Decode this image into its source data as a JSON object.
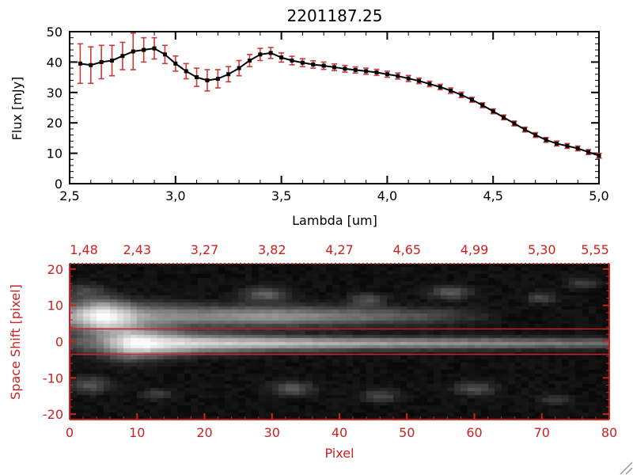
{
  "window": {
    "background": "#ffffff"
  },
  "colors": {
    "axis_black": "#000000",
    "plot_red": "#cc2222",
    "error_red": "#cc3939",
    "background": "#ffffff",
    "image_background": "#000000"
  },
  "chart_data": [
    {
      "type": "line",
      "title": "2201187.25",
      "xlabel": "Lambda [um]",
      "ylabel": "Flux [mJy]",
      "xlim": [
        2.5,
        5.0
      ],
      "ylim": [
        0,
        50
      ],
      "x_ticks": [
        2.5,
        3.0,
        3.5,
        4.0,
        4.5,
        5.0
      ],
      "x_tick_labels": [
        "2,5",
        "3,0",
        "3,5",
        "4,0",
        "4,5",
        "5,0"
      ],
      "x_minor_step": 0.1,
      "y_ticks": [
        0,
        10,
        20,
        30,
        40,
        50
      ],
      "y_tick_labels": [
        "0",
        "10",
        "20",
        "30",
        "40",
        "50"
      ],
      "y_minor_step": 2,
      "marker": "filled-square",
      "has_error_bars": true,
      "line_color": "#000000",
      "error_color": "#cc3939",
      "x": [
        2.55,
        2.6,
        2.65,
        2.7,
        2.75,
        2.8,
        2.85,
        2.9,
        2.95,
        3.0,
        3.05,
        3.1,
        3.15,
        3.2,
        3.25,
        3.3,
        3.35,
        3.4,
        3.45,
        3.5,
        3.55,
        3.6,
        3.65,
        3.7,
        3.75,
        3.8,
        3.85,
        3.9,
        3.95,
        4.0,
        4.05,
        4.1,
        4.15,
        4.2,
        4.25,
        4.3,
        4.35,
        4.4,
        4.45,
        4.5,
        4.55,
        4.6,
        4.65,
        4.7,
        4.75,
        4.8,
        4.85,
        4.9,
        4.95,
        5.0
      ],
      "y": [
        39.5,
        39.0,
        40.0,
        40.5,
        42.0,
        43.5,
        44.0,
        44.5,
        42.5,
        39.5,
        37.0,
        35.0,
        34.0,
        34.5,
        36.0,
        38.0,
        40.5,
        42.5,
        43.0,
        41.5,
        40.5,
        39.8,
        39.2,
        38.8,
        38.3,
        37.8,
        37.4,
        37.0,
        36.6,
        36.0,
        35.4,
        34.6,
        33.8,
        32.8,
        31.8,
        30.6,
        29.2,
        27.6,
        25.8,
        23.8,
        21.8,
        19.8,
        17.8,
        16.0,
        14.4,
        13.2,
        12.4,
        11.6,
        10.4,
        9.2
      ],
      "yerr": [
        6.5,
        6.0,
        5.5,
        5.0,
        4.5,
        6.0,
        4.0,
        3.5,
        3.0,
        2.5,
        2.5,
        3.0,
        3.5,
        3.0,
        2.5,
        2.5,
        2.0,
        2.0,
        1.8,
        1.5,
        1.4,
        1.3,
        1.2,
        1.2,
        1.1,
        1.1,
        1.0,
        1.0,
        1.0,
        1.0,
        1.0,
        1.0,
        0.9,
        0.9,
        0.9,
        0.9,
        0.9,
        0.8,
        0.8,
        0.8,
        0.8,
        0.8,
        0.8,
        0.8,
        0.8,
        0.8,
        0.8,
        0.8,
        0.8,
        0.8
      ]
    },
    {
      "type": "heatmap",
      "xlabel": "Pixel",
      "ylabel": "Space Shift [pixel]",
      "axis_color": "#cc2222",
      "colormap": "grayscale",
      "xlim": [
        0,
        80
      ],
      "ylim": [
        -21.5,
        21.5
      ],
      "x_ticks": [
        0,
        10,
        20,
        30,
        40,
        50,
        60,
        70,
        80
      ],
      "x_tick_labels": [
        "0",
        "10",
        "20",
        "30",
        "40",
        "50",
        "60",
        "70",
        "80"
      ],
      "x_minor_step": 2,
      "y_ticks": [
        -20,
        -10,
        0,
        10,
        20
      ],
      "y_tick_labels": [
        "-20",
        "-10",
        "0",
        "10",
        "20"
      ],
      "y_minor_step": 2,
      "top_axis_labels": [
        "1,48",
        "2,43",
        "3,27",
        "3,82",
        "4,27",
        "4,65",
        "4,99",
        "5,30",
        "5,55"
      ],
      "aperture_lines_y": [
        3.5,
        -3.5
      ],
      "image": {
        "grid": {
          "nx": 80,
          "ny": 44,
          "y_min": -21.5,
          "y_max": 21.5
        },
        "traces": [
          {
            "name": "upper-trace",
            "y_center": 7,
            "amp_points": [
              [
                0,
                0.55
              ],
              [
                3,
                0.85
              ],
              [
                5,
                1.0
              ],
              [
                8,
                0.8
              ],
              [
                11,
                0.55
              ],
              [
                15,
                0.48
              ],
              [
                20,
                0.45
              ],
              [
                26,
                0.5
              ],
              [
                30,
                0.52
              ],
              [
                36,
                0.45
              ],
              [
                42,
                0.38
              ],
              [
                48,
                0.3
              ],
              [
                54,
                0.22
              ],
              [
                58,
                0.14
              ],
              [
                62,
                0.06
              ],
              [
                64,
                0.0
              ],
              [
                80,
                0.0
              ]
            ],
            "sigma_points": [
              [
                0,
                2.6
              ],
              [
                5,
                3.0
              ],
              [
                10,
                2.4
              ],
              [
                20,
                2.0
              ],
              [
                35,
                1.8
              ],
              [
                50,
                1.6
              ],
              [
                80,
                1.5
              ]
            ]
          },
          {
            "name": "lower-trace",
            "y_center": -0.5,
            "amp_points": [
              [
                0,
                0.2
              ],
              [
                4,
                0.35
              ],
              [
                7,
                0.7
              ],
              [
                9,
                0.95
              ],
              [
                11,
                1.0
              ],
              [
                14,
                0.88
              ],
              [
                18,
                0.8
              ],
              [
                25,
                0.73
              ],
              [
                32,
                0.68
              ],
              [
                40,
                0.6
              ],
              [
                48,
                0.55
              ],
              [
                56,
                0.5
              ],
              [
                64,
                0.45
              ],
              [
                72,
                0.4
              ],
              [
                80,
                0.34
              ]
            ],
            "sigma_points": [
              [
                0,
                1.8
              ],
              [
                8,
                2.8
              ],
              [
                13,
                2.3
              ],
              [
                20,
                1.7
              ],
              [
                30,
                1.4
              ],
              [
                45,
                1.2
              ],
              [
                80,
                1.0
              ]
            ]
          }
        ],
        "blobs": [
          {
            "x": 2,
            "y": 14,
            "sx": 2.0,
            "sy": 1.5,
            "amp": 0.18
          },
          {
            "x": 29,
            "y": 13,
            "sx": 2.2,
            "sy": 1.3,
            "amp": 0.3
          },
          {
            "x": 44,
            "y": 11.5,
            "sx": 1.8,
            "sy": 1.2,
            "amp": 0.22
          },
          {
            "x": 56.5,
            "y": 13.5,
            "sx": 2.0,
            "sy": 1.2,
            "amp": 0.28
          },
          {
            "x": 70,
            "y": 12,
            "sx": 1.5,
            "sy": 1.0,
            "amp": 0.2
          },
          {
            "x": 76,
            "y": 16,
            "sx": 1.5,
            "sy": 1.0,
            "amp": 0.18
          },
          {
            "x": 3,
            "y": -12,
            "sx": 2.0,
            "sy": 1.5,
            "amp": 0.25
          },
          {
            "x": 13,
            "y": -14.5,
            "sx": 1.5,
            "sy": 1.0,
            "amp": 0.18
          },
          {
            "x": 33,
            "y": -13,
            "sx": 2.2,
            "sy": 1.3,
            "amp": 0.26
          },
          {
            "x": 46,
            "y": -15,
            "sx": 1.8,
            "sy": 1.1,
            "amp": 0.22
          },
          {
            "x": 60,
            "y": -13,
            "sx": 2.0,
            "sy": 1.2,
            "amp": 0.24
          },
          {
            "x": 72,
            "y": -16,
            "sx": 1.5,
            "sy": 1.0,
            "amp": 0.16
          }
        ]
      }
    }
  ]
}
